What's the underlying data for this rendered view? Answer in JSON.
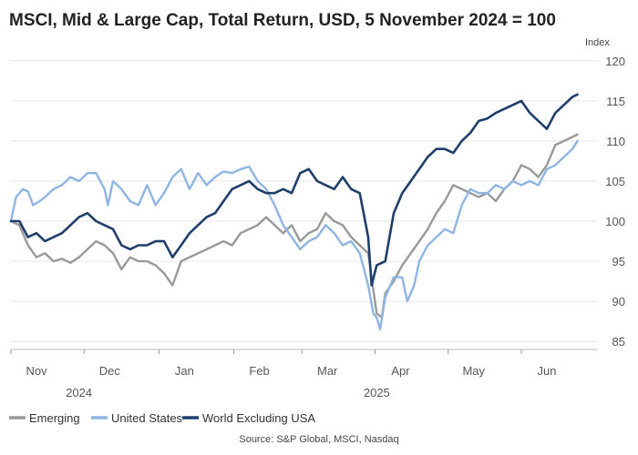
{
  "chart_data": {
    "type": "line",
    "title": "MSCI, Mid & Large Cap, Total Return, USD, 5 November 2024 = 100",
    "ylabel": "Index",
    "ylim": [
      84,
      121
    ],
    "yticks": [
      85,
      90,
      95,
      100,
      105,
      110,
      115,
      120
    ],
    "x_range": [
      0,
      34.5
    ],
    "month_ticks": [
      {
        "label": "Nov",
        "x": 1.5
      },
      {
        "label": "Dec",
        "x": 5.8
      },
      {
        "label": "Jan",
        "x": 10.2
      },
      {
        "label": "Feb",
        "x": 14.6
      },
      {
        "label": "Mar",
        "x": 18.6
      },
      {
        "label": "Apr",
        "x": 22.9
      },
      {
        "label": "May",
        "x": 27.2
      },
      {
        "label": "Jun",
        "x": 31.5
      }
    ],
    "year_labels": [
      {
        "label": "2024",
        "x": 4
      },
      {
        "label": "2025",
        "x": 21.5
      }
    ],
    "source": "Source: S&P Global, MSCI, Nasdaq",
    "series": [
      {
        "name": "Emerging",
        "color": "#999999",
        "points": [
          [
            0,
            100
          ],
          [
            0.5,
            99.5
          ],
          [
            1,
            97
          ],
          [
            1.5,
            95.5
          ],
          [
            2,
            96
          ],
          [
            2.5,
            95
          ],
          [
            3,
            95.3
          ],
          [
            3.5,
            94.8
          ],
          [
            4,
            95.5
          ],
          [
            4.5,
            96.5
          ],
          [
            5,
            97.5
          ],
          [
            5.5,
            97
          ],
          [
            6,
            96
          ],
          [
            6.5,
            94
          ],
          [
            7,
            95.5
          ],
          [
            7.5,
            95
          ],
          [
            8,
            95
          ],
          [
            8.5,
            94.5
          ],
          [
            9,
            93.5
          ],
          [
            9.5,
            92
          ],
          [
            10,
            95
          ],
          [
            10.5,
            95.5
          ],
          [
            11,
            96
          ],
          [
            11.5,
            96.5
          ],
          [
            12,
            97
          ],
          [
            12.5,
            97.5
          ],
          [
            13,
            97
          ],
          [
            13.5,
            98.5
          ],
          [
            14,
            99
          ],
          [
            14.5,
            99.5
          ],
          [
            15,
            100.5
          ],
          [
            15.5,
            99.5
          ],
          [
            16,
            98.5
          ],
          [
            16.5,
            99.5
          ],
          [
            17,
            97.5
          ],
          [
            17.5,
            98.5
          ],
          [
            18,
            99
          ],
          [
            18.5,
            101
          ],
          [
            19,
            100
          ],
          [
            19.5,
            99.5
          ],
          [
            20,
            98
          ],
          [
            20.5,
            97
          ],
          [
            21,
            96
          ],
          [
            21.2,
            93
          ],
          [
            21.5,
            88.5
          ],
          [
            21.8,
            88
          ],
          [
            22,
            91
          ],
          [
            22.5,
            92.5
          ],
          [
            23,
            94.5
          ],
          [
            23.5,
            96
          ],
          [
            24,
            97.5
          ],
          [
            24.5,
            99
          ],
          [
            25,
            101
          ],
          [
            25.5,
            102.5
          ],
          [
            26,
            104.5
          ],
          [
            26.5,
            104
          ],
          [
            27,
            103.5
          ],
          [
            27.5,
            103
          ],
          [
            28,
            103.5
          ],
          [
            28.5,
            102.5
          ],
          [
            29,
            104
          ],
          [
            29.5,
            105
          ],
          [
            30,
            107
          ],
          [
            30.5,
            106.5
          ],
          [
            31,
            105.5
          ],
          [
            31.5,
            107
          ],
          [
            32,
            109.5
          ],
          [
            32.5,
            110
          ],
          [
            33,
            110.5
          ],
          [
            33.3,
            110.8
          ]
        ]
      },
      {
        "name": "United States",
        "color": "#8fb5e2",
        "points": [
          [
            0,
            100
          ],
          [
            0.3,
            103
          ],
          [
            0.7,
            104
          ],
          [
            1,
            103.7
          ],
          [
            1.3,
            102
          ],
          [
            1.7,
            102.5
          ],
          [
            2,
            103
          ],
          [
            2.5,
            104
          ],
          [
            3,
            104.5
          ],
          [
            3.5,
            105.5
          ],
          [
            4,
            105
          ],
          [
            4.5,
            106
          ],
          [
            5,
            106
          ],
          [
            5.5,
            104
          ],
          [
            5.7,
            102
          ],
          [
            6,
            105
          ],
          [
            6.5,
            104
          ],
          [
            7,
            102.5
          ],
          [
            7.5,
            102
          ],
          [
            8,
            104.5
          ],
          [
            8.5,
            102
          ],
          [
            9,
            103.5
          ],
          [
            9.5,
            105.5
          ],
          [
            10,
            106.5
          ],
          [
            10.5,
            104
          ],
          [
            11,
            106
          ],
          [
            11.5,
            104.5
          ],
          [
            12,
            105.5
          ],
          [
            12.5,
            106.2
          ],
          [
            13,
            106
          ],
          [
            13.5,
            106.5
          ],
          [
            14,
            106.8
          ],
          [
            14.5,
            105
          ],
          [
            15,
            104
          ],
          [
            15.5,
            102
          ],
          [
            16,
            99.5
          ],
          [
            16.5,
            98
          ],
          [
            17,
            96.5
          ],
          [
            17.5,
            97.5
          ],
          [
            18,
            98
          ],
          [
            18.5,
            99.5
          ],
          [
            19,
            98.5
          ],
          [
            19.5,
            97
          ],
          [
            20,
            97.5
          ],
          [
            20.5,
            96
          ],
          [
            21,
            92
          ],
          [
            21.3,
            88.5
          ],
          [
            21.5,
            88
          ],
          [
            21.7,
            86.5
          ],
          [
            22,
            90.5
          ],
          [
            22.5,
            93
          ],
          [
            23,
            93
          ],
          [
            23.3,
            90
          ],
          [
            23.7,
            92
          ],
          [
            24,
            95
          ],
          [
            24.5,
            97
          ],
          [
            25,
            98
          ],
          [
            25.5,
            99
          ],
          [
            26,
            98.5
          ],
          [
            26.5,
            102
          ],
          [
            27,
            104
          ],
          [
            27.5,
            103.5
          ],
          [
            28,
            103.5
          ],
          [
            28.5,
            104.5
          ],
          [
            29,
            104
          ],
          [
            29.5,
            105
          ],
          [
            30,
            104.5
          ],
          [
            30.5,
            105
          ],
          [
            31,
            104.5
          ],
          [
            31.5,
            106.5
          ],
          [
            32,
            107
          ],
          [
            32.5,
            108
          ],
          [
            33,
            109
          ],
          [
            33.3,
            110
          ]
        ]
      },
      {
        "name": "World Excluding USA",
        "color": "#1f3e6b",
        "points": [
          [
            0,
            100
          ],
          [
            0.5,
            100
          ],
          [
            1,
            98
          ],
          [
            1.5,
            98.5
          ],
          [
            2,
            97.5
          ],
          [
            2.5,
            98
          ],
          [
            3,
            98.5
          ],
          [
            3.5,
            99.5
          ],
          [
            4,
            100.5
          ],
          [
            4.5,
            101
          ],
          [
            5,
            100
          ],
          [
            5.5,
            99.5
          ],
          [
            6,
            99
          ],
          [
            6.5,
            97
          ],
          [
            7,
            96.5
          ],
          [
            7.5,
            97
          ],
          [
            8,
            97
          ],
          [
            8.5,
            97.5
          ],
          [
            9,
            97.5
          ],
          [
            9.5,
            95.5
          ],
          [
            10,
            97
          ],
          [
            10.5,
            98.5
          ],
          [
            11,
            99.5
          ],
          [
            11.5,
            100.5
          ],
          [
            12,
            101
          ],
          [
            12.5,
            102.5
          ],
          [
            13,
            104
          ],
          [
            13.5,
            104.5
          ],
          [
            14,
            105
          ],
          [
            14.5,
            104
          ],
          [
            15,
            103.5
          ],
          [
            15.5,
            103.5
          ],
          [
            16,
            104
          ],
          [
            16.5,
            103.5
          ],
          [
            17,
            106
          ],
          [
            17.5,
            106.5
          ],
          [
            18,
            105
          ],
          [
            18.5,
            104.5
          ],
          [
            19,
            104
          ],
          [
            19.5,
            105.5
          ],
          [
            20,
            104
          ],
          [
            20.5,
            103.5
          ],
          [
            21,
            98
          ],
          [
            21.2,
            92
          ],
          [
            21.5,
            94.5
          ],
          [
            22,
            95
          ],
          [
            22.5,
            101
          ],
          [
            23,
            103.5
          ],
          [
            23.5,
            105
          ],
          [
            24,
            106.5
          ],
          [
            24.5,
            108
          ],
          [
            25,
            109
          ],
          [
            25.5,
            109
          ],
          [
            26,
            108.5
          ],
          [
            26.5,
            110
          ],
          [
            27,
            111
          ],
          [
            27.5,
            112.5
          ],
          [
            28,
            112.8
          ],
          [
            28.5,
            113.5
          ],
          [
            29,
            114
          ],
          [
            29.5,
            114.5
          ],
          [
            30,
            115
          ],
          [
            30.5,
            113.5
          ],
          [
            31,
            112.5
          ],
          [
            31.5,
            111.5
          ],
          [
            32,
            113.5
          ],
          [
            32.5,
            114.5
          ],
          [
            33,
            115.5
          ],
          [
            33.3,
            115.8
          ]
        ]
      }
    ]
  }
}
